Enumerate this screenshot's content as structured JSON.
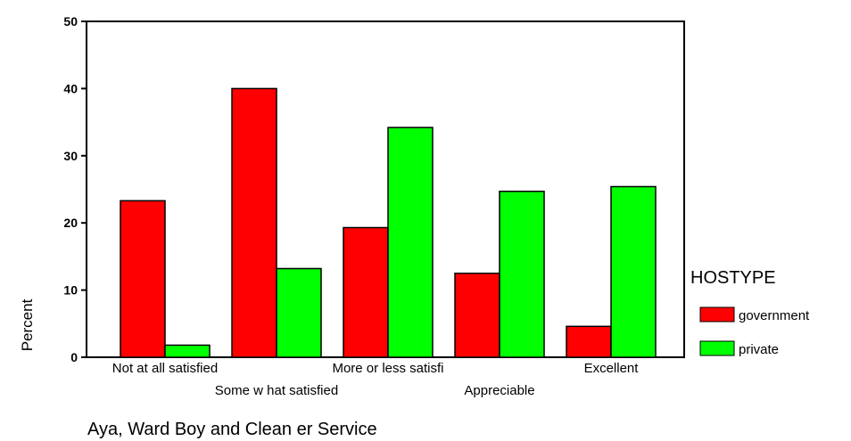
{
  "chart_data": {
    "type": "bar",
    "categories": [
      "Not at all satisfied",
      "Some w hat satisfied",
      "More or less satisfi",
      "Appreciable",
      "Excellent"
    ],
    "series": [
      {
        "name": "government",
        "values": [
          23.3,
          40.0,
          19.3,
          12.5,
          4.6
        ],
        "color": "#ff0000"
      },
      {
        "name": "private",
        "values": [
          1.8,
          13.2,
          34.2,
          24.7,
          25.4
        ],
        "color": "#00ff00"
      }
    ],
    "yticks": [
      "0",
      "10",
      "20",
      "30",
      "40",
      "50"
    ],
    "ylim": [
      0,
      50
    ],
    "ylabel": "Percent",
    "xlabel": "Aya, Ward Boy and Clean er Service",
    "legend": {
      "title": "HOSTYPE",
      "position": "right"
    },
    "grid": false
  }
}
